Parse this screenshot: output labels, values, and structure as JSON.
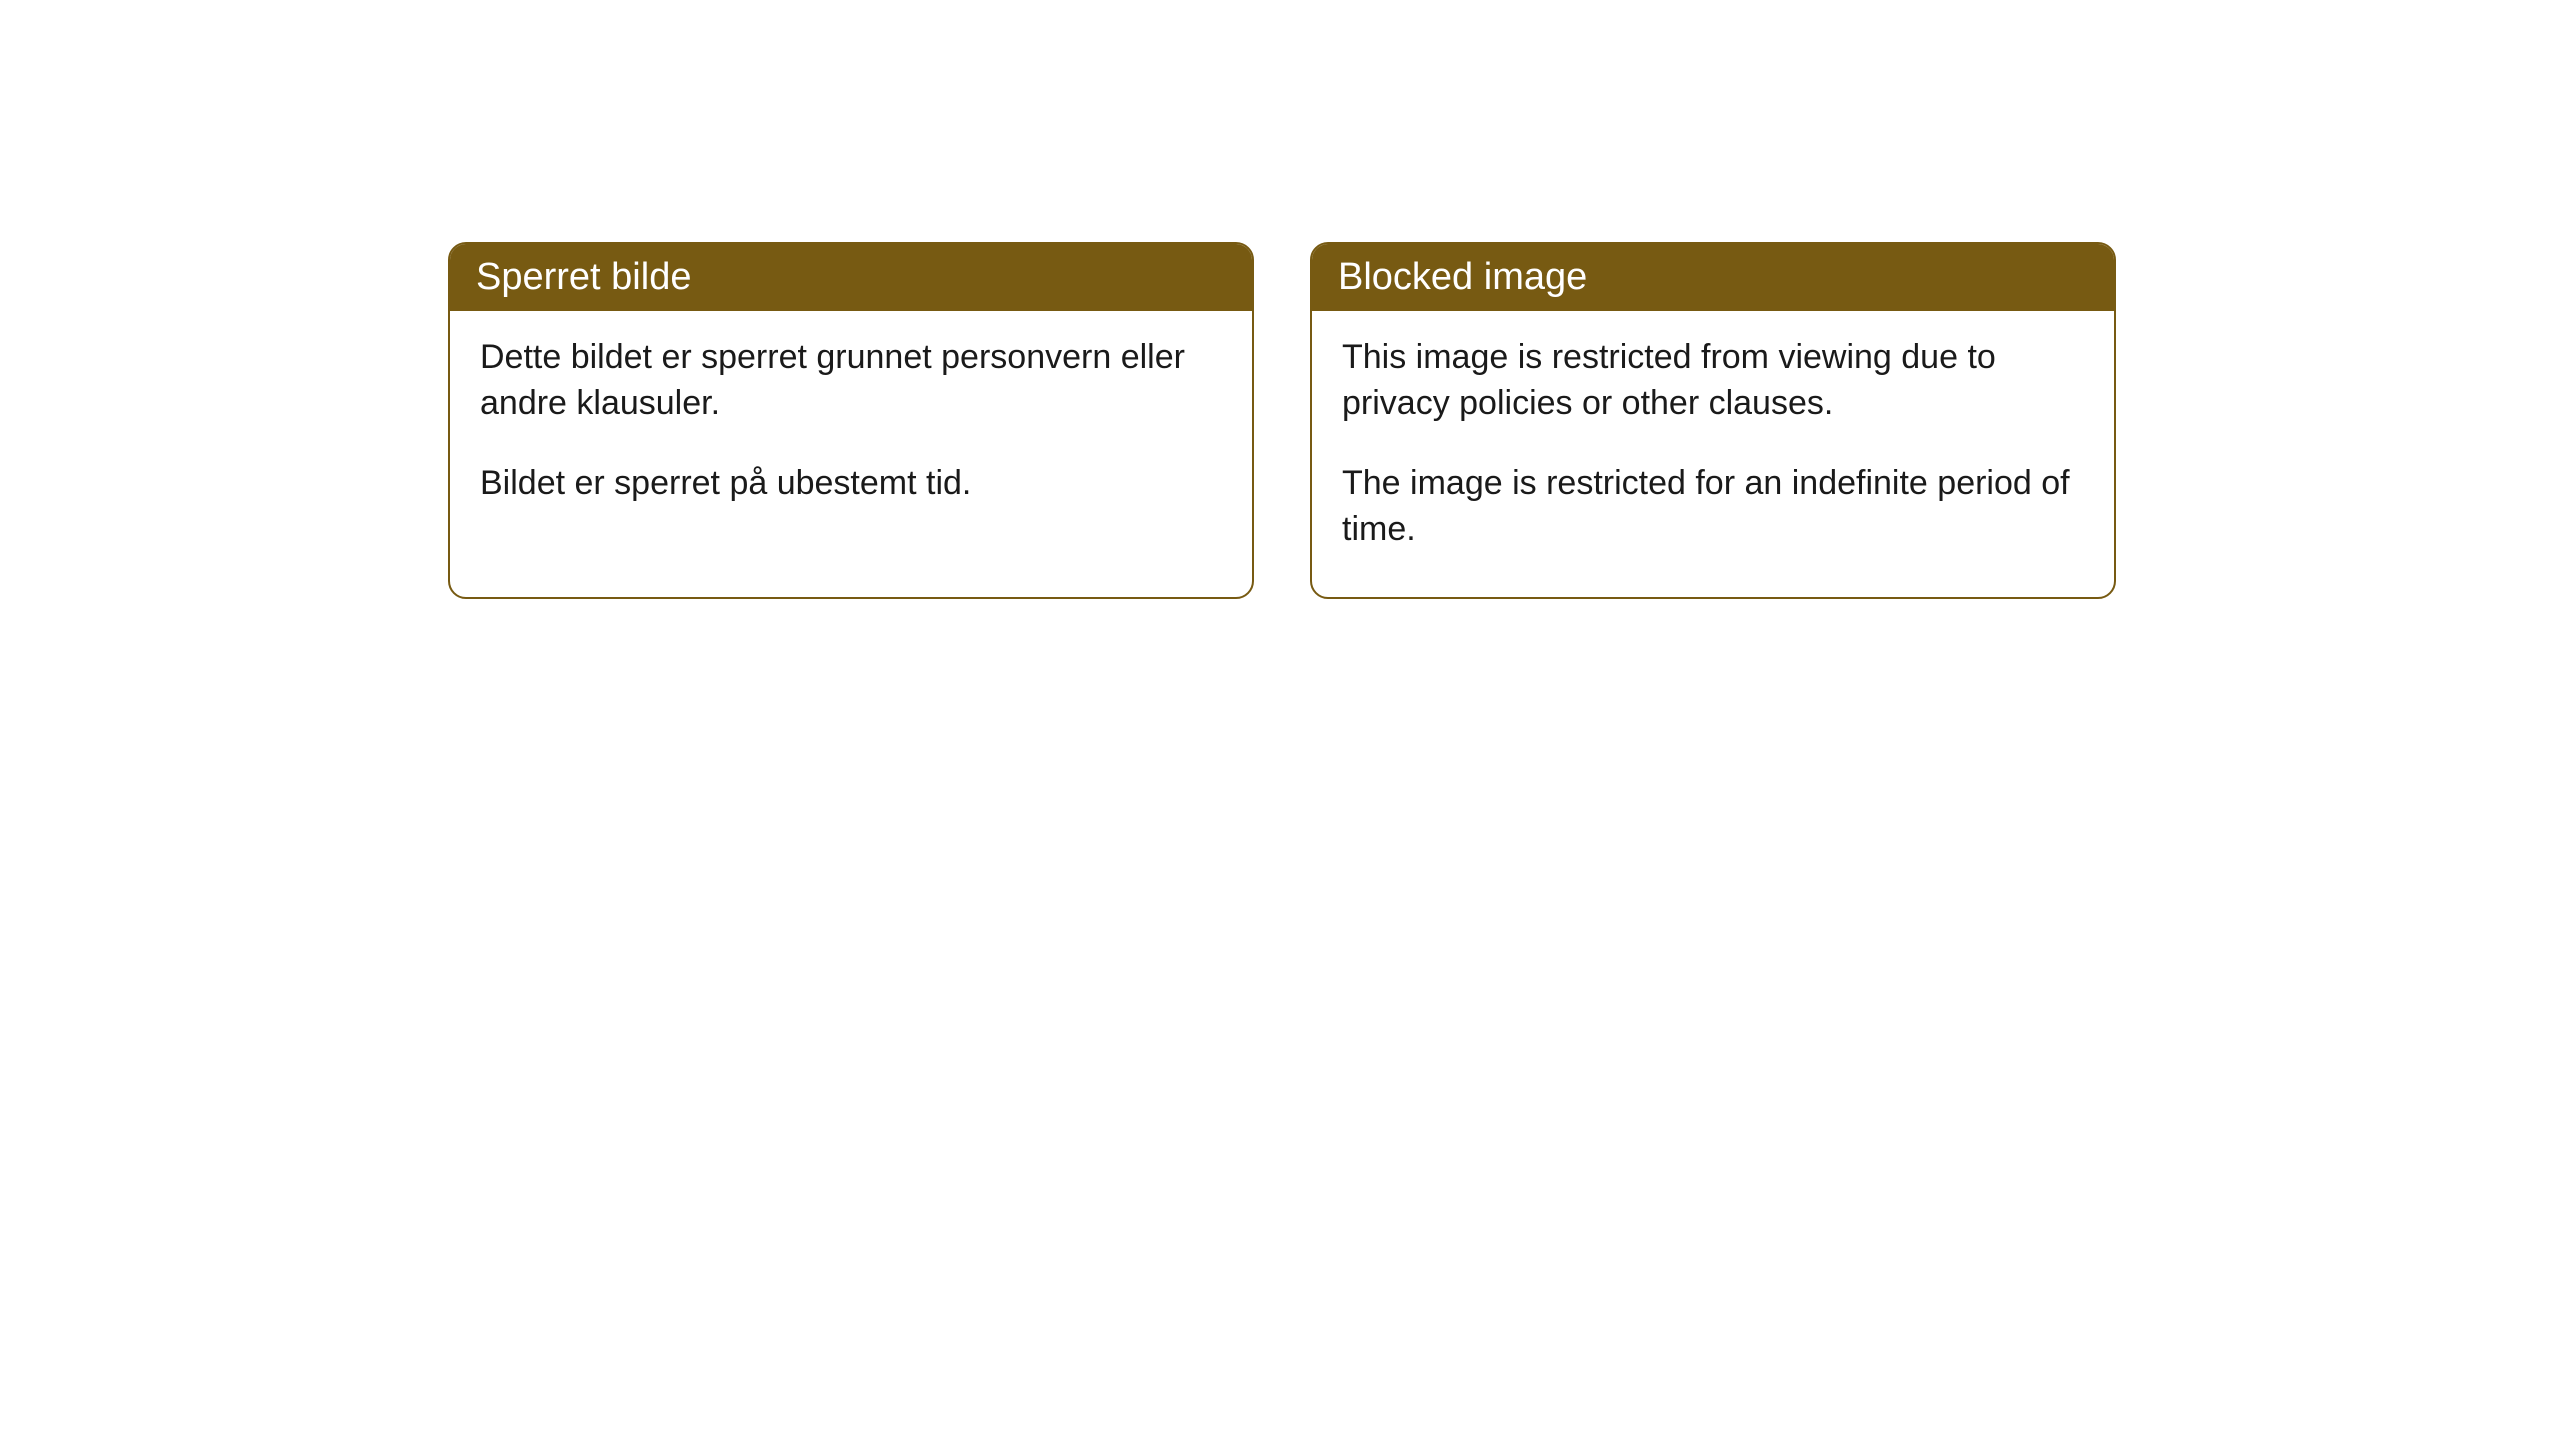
{
  "cards": [
    {
      "title": "Sperret bilde",
      "paragraph1": "Dette bildet er sperret grunnet personvern eller andre klausuler.",
      "paragraph2": "Bildet er sperret på ubestemt tid."
    },
    {
      "title": "Blocked image",
      "paragraph1": "This image is restricted from viewing due to privacy policies or other clauses.",
      "paragraph2": "The image is restricted for an indefinite period of time."
    }
  ],
  "styling": {
    "header_background": "#775a12",
    "header_text_color": "#ffffff",
    "border_color": "#775a12",
    "card_background": "#ffffff",
    "body_text_color": "#1a1a1a",
    "border_radius": 18,
    "header_fontsize": 38,
    "body_fontsize": 34
  }
}
